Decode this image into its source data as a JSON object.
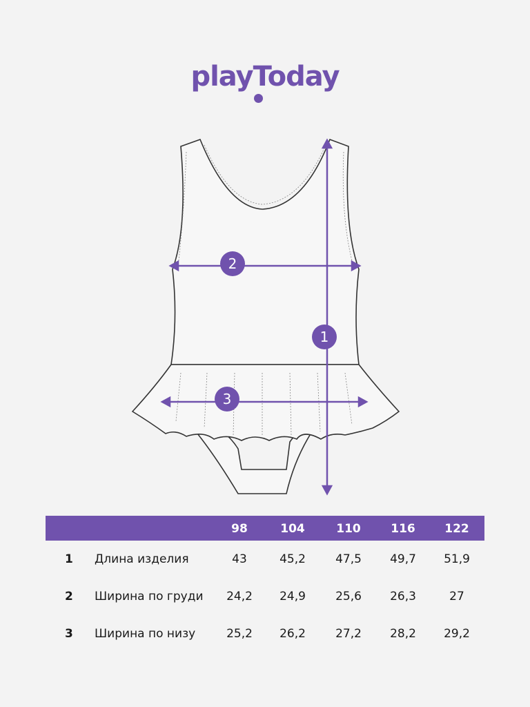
{
  "brand": {
    "logo_text": "playToday",
    "color": "#7052ad"
  },
  "diagram": {
    "markers": [
      {
        "number": "1",
        "measure": "length"
      },
      {
        "number": "2",
        "measure": "chest width"
      },
      {
        "number": "3",
        "measure": "bottom width"
      }
    ]
  },
  "table": {
    "sizes": [
      "98",
      "104",
      "110",
      "116",
      "122"
    ],
    "rows": [
      {
        "number": "1",
        "label": "Длина изделия",
        "values": [
          "43",
          "45,2",
          "47,5",
          "49,7",
          "51,9"
        ]
      },
      {
        "number": "2",
        "label": "Ширина по груди",
        "values": [
          "24,2",
          "24,9",
          "25,6",
          "26,3",
          "27"
        ]
      },
      {
        "number": "3",
        "label": "Ширина по низу",
        "values": [
          "25,2",
          "26,2",
          "27,2",
          "28,2",
          "29,2"
        ]
      }
    ]
  }
}
